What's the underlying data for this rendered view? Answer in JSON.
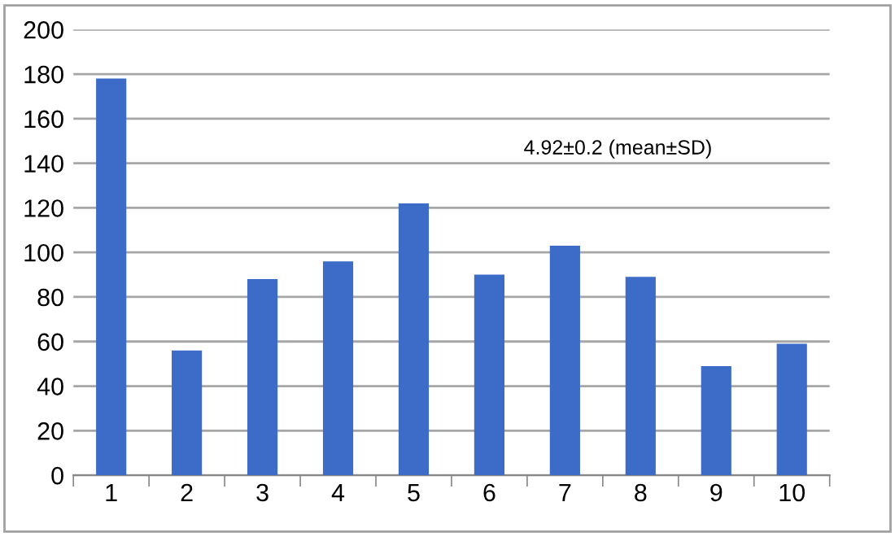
{
  "chart_data": {
    "type": "bar",
    "categories": [
      "1",
      "2",
      "3",
      "4",
      "5",
      "6",
      "7",
      "8",
      "9",
      "10"
    ],
    "values": [
      178,
      56,
      88,
      96,
      122,
      90,
      103,
      89,
      49,
      59
    ],
    "color": "#3d6cc8",
    "ylim": [
      0,
      200
    ],
    "yticks": [
      0,
      20,
      40,
      60,
      80,
      100,
      120,
      140,
      160,
      180,
      200
    ],
    "grid": "y",
    "annotations": [
      "4.92±0.2 (mean±SD)"
    ]
  }
}
